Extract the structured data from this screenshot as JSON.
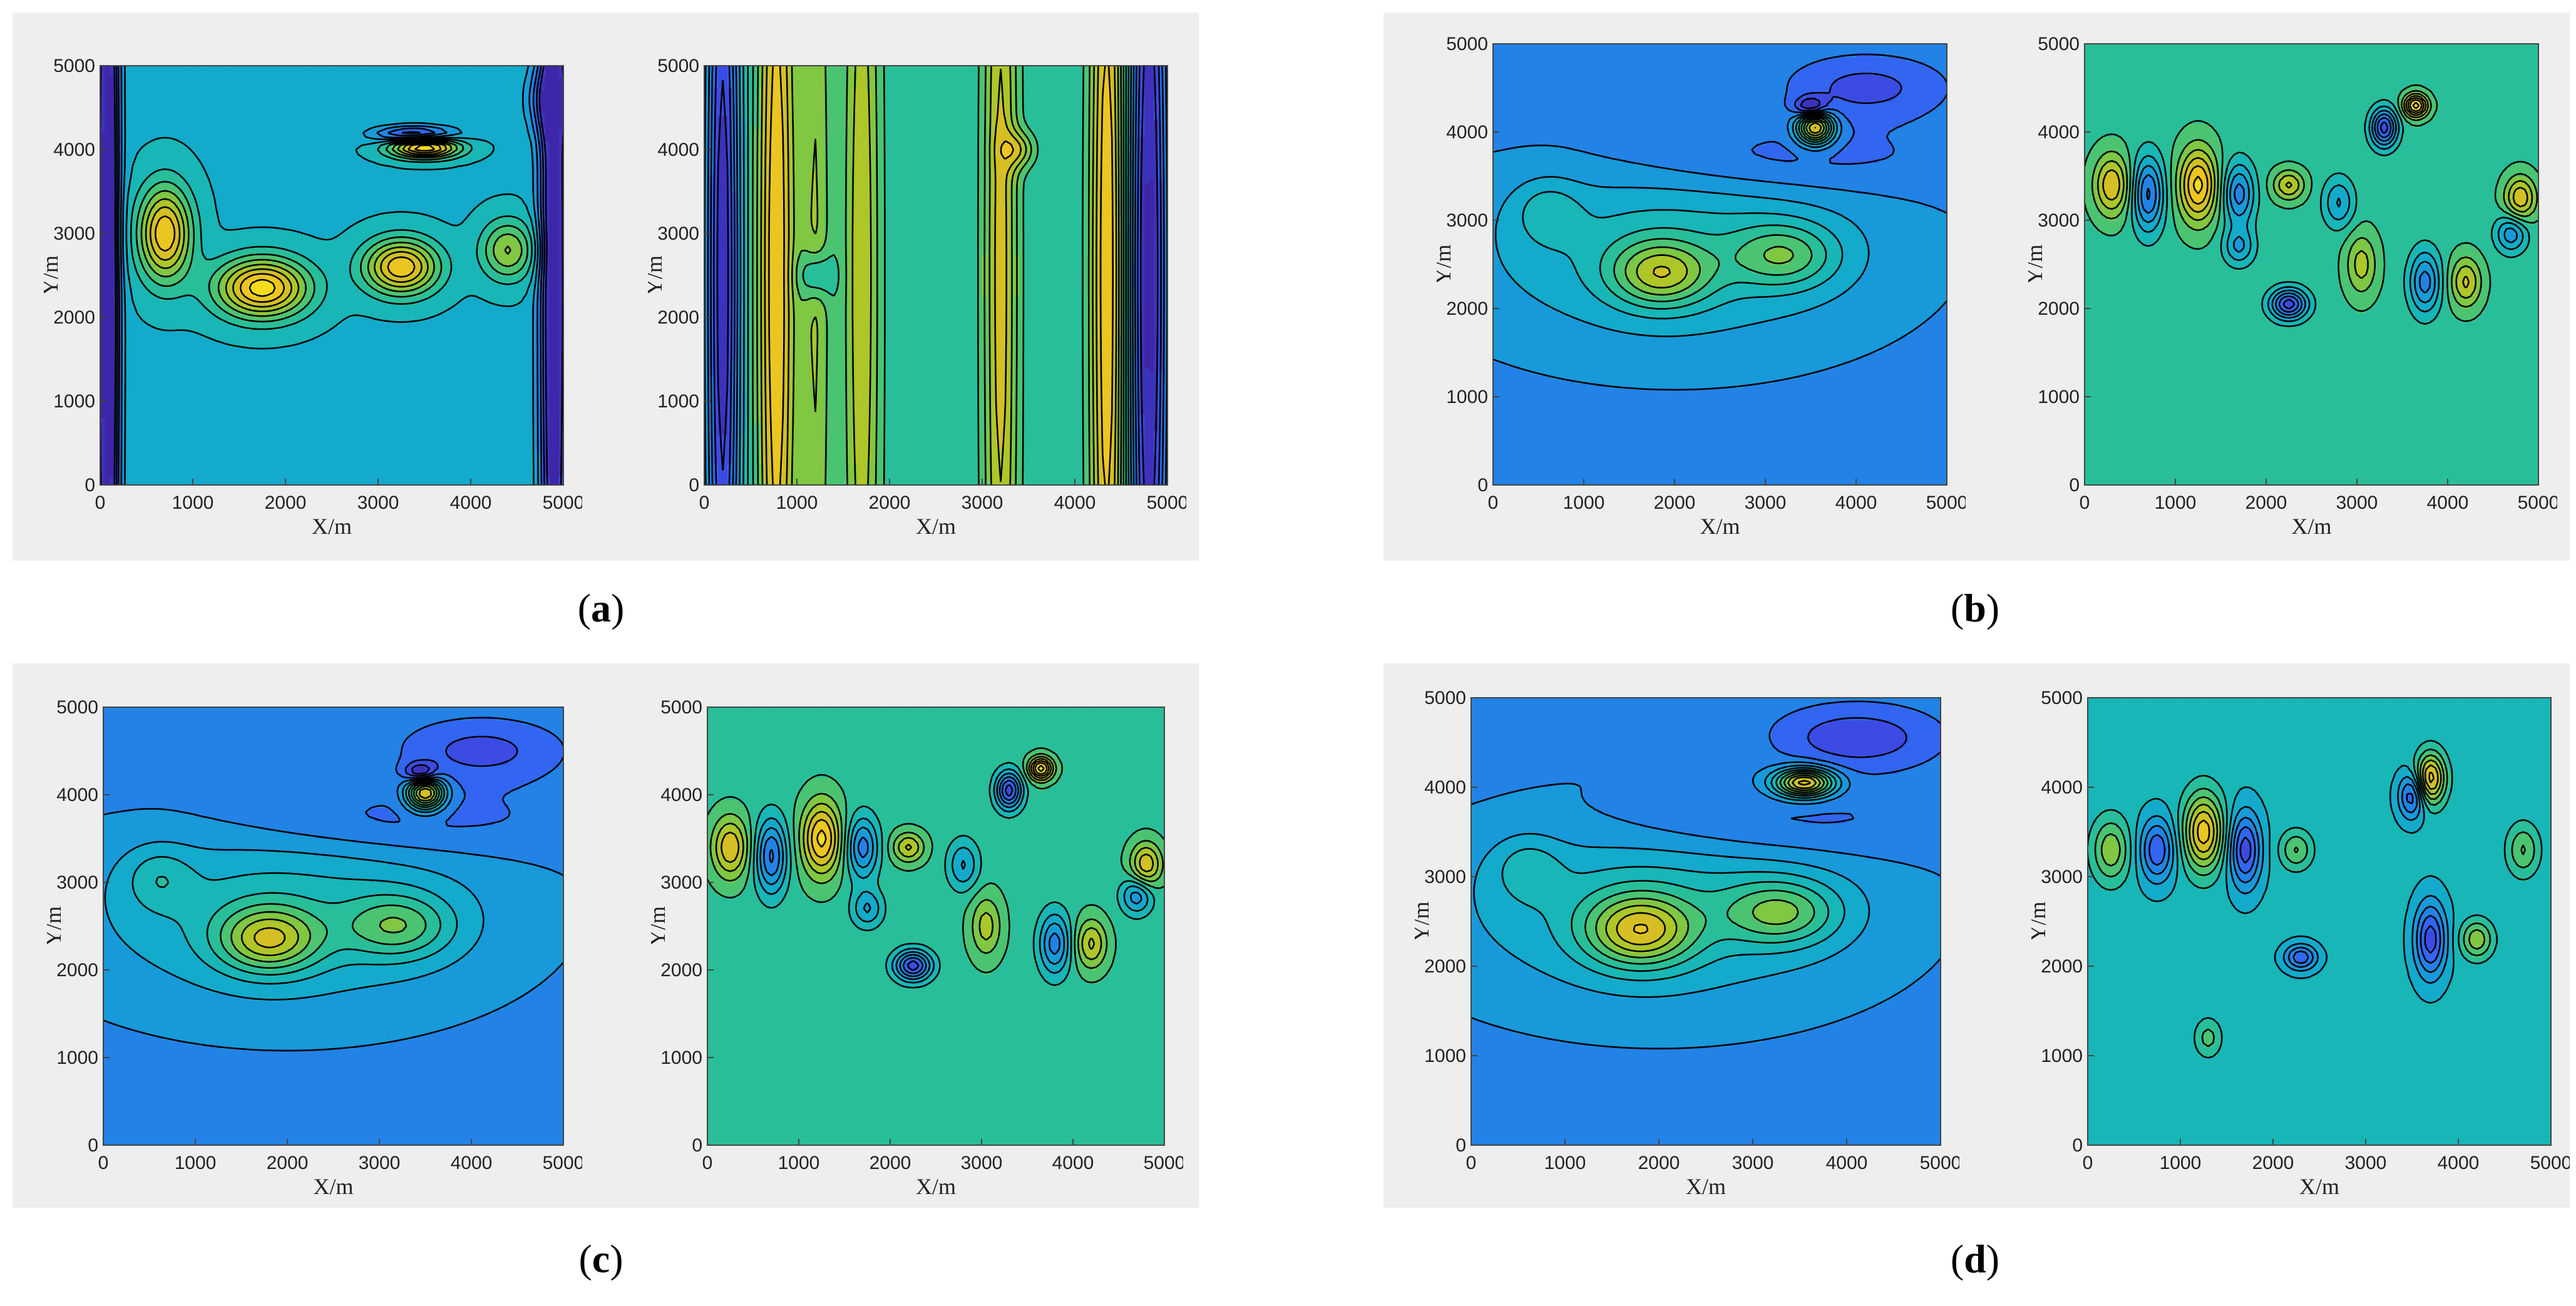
{
  "captions": [
    {
      "open": "(",
      "letter": "a",
      "close": ")"
    },
    {
      "open": "(",
      "letter": "b",
      "close": ")"
    },
    {
      "open": "(",
      "letter": "c",
      "close": ")"
    },
    {
      "open": "(",
      "letter": "d",
      "close": ")"
    }
  ],
  "colors": {
    "panel_bg": "#eeeeee",
    "contour_line": "#000000",
    "colormap": [
      "#3e26a8",
      "#3a57f6",
      "#1a90e0",
      "#10b2c4",
      "#30c28a",
      "#9bc92a",
      "#e8bb22",
      "#f8e51a"
    ]
  },
  "chart_data": [
    {
      "id": "a-left",
      "type": "heatmap",
      "xlabel": "X/m",
      "ylabel": "Y/m",
      "xlim": [
        0,
        5000
      ],
      "ylim": [
        0,
        5000
      ],
      "xticks": [
        0,
        1000,
        2000,
        3000,
        4000,
        5000
      ],
      "yticks": [
        0,
        1000,
        2000,
        3000,
        4000,
        5000
      ],
      "background_level": 0.42,
      "features": [
        {
          "x": 80,
          "y": 2500,
          "sx": 90,
          "sy": 5000,
          "a": -0.55
        },
        {
          "x": 4900,
          "y": 2500,
          "sx": 110,
          "sy": 5000,
          "a": -0.5
        },
        {
          "x": 4800,
          "y": 4600,
          "sx": 150,
          "sy": 300,
          "a": -0.2
        },
        {
          "x": 700,
          "y": 3000,
          "sx": 200,
          "sy": 400,
          "a": 0.5
        },
        {
          "x": 1750,
          "y": 2350,
          "sx": 350,
          "sy": 250,
          "a": 0.55
        },
        {
          "x": 3250,
          "y": 2600,
          "sx": 280,
          "sy": 230,
          "a": 0.5
        },
        {
          "x": 4400,
          "y": 2800,
          "sx": 200,
          "sy": 250,
          "a": 0.3
        },
        {
          "x": 3500,
          "y": 4030,
          "sx": 260,
          "sy": 90,
          "a": 0.6
        },
        {
          "x": 3400,
          "y": 4180,
          "sx": 300,
          "sy": 70,
          "a": -0.4
        }
      ]
    },
    {
      "id": "a-right",
      "type": "heatmap",
      "xlabel": "X/m",
      "ylabel": "Y/m",
      "xlim": [
        0,
        5000
      ],
      "ylim": [
        0,
        5000
      ],
      "xticks": [
        0,
        1000,
        2000,
        3000,
        4000,
        5000
      ],
      "yticks": [
        0,
        1000,
        2000,
        3000,
        4000,
        5000
      ],
      "background_level": 0.52,
      "features": [
        {
          "x": 200,
          "y": 2500,
          "sx": 130,
          "sy": 5000,
          "a": -0.5
        },
        {
          "x": 780,
          "y": 2500,
          "sx": 140,
          "sy": 5000,
          "a": 0.4
        },
        {
          "x": 1200,
          "y": 2500,
          "sx": 120,
          "sy": 5000,
          "a": 0.2
        },
        {
          "x": 1700,
          "y": 2500,
          "sx": 140,
          "sy": 5000,
          "a": 0.25
        },
        {
          "x": 3200,
          "y": 2500,
          "sx": 130,
          "sy": 5000,
          "a": 0.3
        },
        {
          "x": 4350,
          "y": 2500,
          "sx": 130,
          "sy": 5000,
          "a": 0.4
        },
        {
          "x": 4800,
          "y": 2500,
          "sx": 150,
          "sy": 5000,
          "a": -0.55
        },
        {
          "x": 1200,
          "y": 2500,
          "sx": 120,
          "sy": 200,
          "a": -0.2
        },
        {
          "x": 3400,
          "y": 4000,
          "sx": 120,
          "sy": 150,
          "a": 0.2
        }
      ]
    },
    {
      "id": "b-left",
      "type": "heatmap",
      "xlabel": "X/m",
      "ylabel": "Y/m",
      "xlim": [
        0,
        5000
      ],
      "ylim": [
        0,
        5000
      ],
      "xticks": [
        0,
        1000,
        2000,
        3000,
        4000,
        5000
      ],
      "yticks": [
        0,
        1000,
        2000,
        3000,
        4000,
        5000
      ],
      "background_level": 0.26,
      "features": [
        {
          "x": 2000,
          "y": 2700,
          "sx": 1600,
          "sy": 800,
          "a": 0.2
        },
        {
          "x": 1850,
          "y": 2400,
          "sx": 380,
          "sy": 260,
          "a": 0.35
        },
        {
          "x": 3200,
          "y": 2600,
          "sx": 400,
          "sy": 250,
          "a": 0.25
        },
        {
          "x": 600,
          "y": 3100,
          "sx": 250,
          "sy": 250,
          "a": 0.12
        },
        {
          "x": 3000,
          "y": 3700,
          "sx": 1400,
          "sy": 300,
          "a": -0.12
        },
        {
          "x": 4100,
          "y": 4500,
          "sx": 600,
          "sy": 250,
          "a": -0.15
        },
        {
          "x": 3550,
          "y": 4050,
          "sx": 140,
          "sy": 130,
          "a": 0.65
        },
        {
          "x": 3500,
          "y": 4280,
          "sx": 120,
          "sy": 80,
          "a": -0.3
        }
      ]
    },
    {
      "id": "b-right",
      "type": "heatmap",
      "xlabel": "X/m",
      "ylabel": "Y/m",
      "xlim": [
        0,
        5000
      ],
      "ylim": [
        0,
        5000
      ],
      "xticks": [
        0,
        1000,
        2000,
        3000,
        4000,
        5000
      ],
      "yticks": [
        0,
        1000,
        2000,
        3000,
        4000,
        5000
      ],
      "background_level": 0.55,
      "features": [
        {
          "x": 300,
          "y": 3400,
          "sx": 140,
          "sy": 250,
          "a": 0.3
        },
        {
          "x": 700,
          "y": 3300,
          "sx": 120,
          "sy": 300,
          "a": -0.35
        },
        {
          "x": 1250,
          "y": 3400,
          "sx": 150,
          "sy": 300,
          "a": 0.4
        },
        {
          "x": 1700,
          "y": 3300,
          "sx": 120,
          "sy": 250,
          "a": -0.3
        },
        {
          "x": 1700,
          "y": 2700,
          "sx": 120,
          "sy": 150,
          "a": -0.2
        },
        {
          "x": 2250,
          "y": 3400,
          "sx": 120,
          "sy": 120,
          "a": 0.25
        },
        {
          "x": 2250,
          "y": 2050,
          "sx": 140,
          "sy": 120,
          "a": -0.45
        },
        {
          "x": 3300,
          "y": 4050,
          "sx": 100,
          "sy": 150,
          "a": -0.45
        },
        {
          "x": 3650,
          "y": 4300,
          "sx": 90,
          "sy": 90,
          "a": 0.5
        },
        {
          "x": 3750,
          "y": 2300,
          "sx": 120,
          "sy": 250,
          "a": -0.3
        },
        {
          "x": 4200,
          "y": 2300,
          "sx": 120,
          "sy": 200,
          "a": 0.25
        },
        {
          "x": 4800,
          "y": 3250,
          "sx": 120,
          "sy": 180,
          "a": 0.3
        },
        {
          "x": 4700,
          "y": 2850,
          "sx": 120,
          "sy": 150,
          "a": -0.25
        },
        {
          "x": 2800,
          "y": 3200,
          "sx": 120,
          "sy": 200,
          "a": -0.2
        },
        {
          "x": 3050,
          "y": 2500,
          "sx": 120,
          "sy": 250,
          "a": 0.2
        }
      ]
    },
    {
      "id": "c-left",
      "type": "heatmap",
      "xlabel": "X/m",
      "ylabel": "Y/m",
      "xlim": [
        0,
        5000
      ],
      "ylim": [
        0,
        5000
      ],
      "xticks": [
        0,
        1000,
        2000,
        3000,
        4000,
        5000
      ],
      "yticks": [
        0,
        1000,
        2000,
        3000,
        4000,
        5000
      ],
      "background_level": 0.26,
      "features": [
        {
          "x": 2000,
          "y": 2700,
          "sx": 1600,
          "sy": 800,
          "a": 0.2
        },
        {
          "x": 1800,
          "y": 2350,
          "sx": 380,
          "sy": 260,
          "a": 0.38
        },
        {
          "x": 3200,
          "y": 2500,
          "sx": 400,
          "sy": 250,
          "a": 0.25
        },
        {
          "x": 600,
          "y": 3050,
          "sx": 250,
          "sy": 250,
          "a": 0.12
        },
        {
          "x": 3000,
          "y": 3700,
          "sx": 1400,
          "sy": 300,
          "a": -0.12
        },
        {
          "x": 4100,
          "y": 4500,
          "sx": 600,
          "sy": 250,
          "a": -0.15
        },
        {
          "x": 3500,
          "y": 4020,
          "sx": 140,
          "sy": 130,
          "a": 0.65
        },
        {
          "x": 3450,
          "y": 4250,
          "sx": 120,
          "sy": 80,
          "a": -0.3
        }
      ]
    },
    {
      "id": "c-right",
      "type": "heatmap",
      "xlabel": "X/m",
      "ylabel": "Y/m",
      "xlim": [
        0,
        5000
      ],
      "ylim": [
        0,
        5000
      ],
      "xticks": [
        0,
        1000,
        2000,
        3000,
        4000,
        5000
      ],
      "yticks": [
        0,
        1000,
        2000,
        3000,
        4000,
        5000
      ],
      "background_level": 0.55,
      "features": [
        {
          "x": 250,
          "y": 3400,
          "sx": 140,
          "sy": 250,
          "a": 0.3
        },
        {
          "x": 700,
          "y": 3300,
          "sx": 120,
          "sy": 300,
          "a": -0.35
        },
        {
          "x": 1250,
          "y": 3500,
          "sx": 150,
          "sy": 300,
          "a": 0.4
        },
        {
          "x": 1700,
          "y": 3400,
          "sx": 120,
          "sy": 250,
          "a": -0.3
        },
        {
          "x": 1750,
          "y": 2700,
          "sx": 120,
          "sy": 150,
          "a": -0.2
        },
        {
          "x": 2200,
          "y": 3400,
          "sx": 120,
          "sy": 120,
          "a": 0.25
        },
        {
          "x": 2250,
          "y": 2050,
          "sx": 140,
          "sy": 120,
          "a": -0.45
        },
        {
          "x": 3300,
          "y": 4050,
          "sx": 100,
          "sy": 150,
          "a": -0.45
        },
        {
          "x": 3650,
          "y": 4300,
          "sx": 90,
          "sy": 90,
          "a": 0.5
        },
        {
          "x": 3800,
          "y": 2300,
          "sx": 120,
          "sy": 250,
          "a": -0.3
        },
        {
          "x": 4200,
          "y": 2300,
          "sx": 120,
          "sy": 200,
          "a": 0.25
        },
        {
          "x": 4800,
          "y": 3200,
          "sx": 120,
          "sy": 180,
          "a": 0.3
        },
        {
          "x": 4700,
          "y": 2850,
          "sx": 120,
          "sy": 150,
          "a": -0.25
        },
        {
          "x": 2800,
          "y": 3200,
          "sx": 120,
          "sy": 200,
          "a": -0.2
        },
        {
          "x": 3050,
          "y": 2500,
          "sx": 120,
          "sy": 250,
          "a": 0.2
        }
      ]
    },
    {
      "id": "d-left",
      "type": "heatmap",
      "xlabel": "X/m",
      "ylabel": "Y/m",
      "xlim": [
        0,
        5000
      ],
      "ylim": [
        0,
        5000
      ],
      "xticks": [
        0,
        1000,
        2000,
        3000,
        4000,
        5000
      ],
      "yticks": [
        0,
        1000,
        2000,
        3000,
        4000,
        5000
      ],
      "background_level": 0.26,
      "features": [
        {
          "x": 2000,
          "y": 2700,
          "sx": 1600,
          "sy": 800,
          "a": 0.2
        },
        {
          "x": 1800,
          "y": 2400,
          "sx": 400,
          "sy": 280,
          "a": 0.42
        },
        {
          "x": 3300,
          "y": 2600,
          "sx": 420,
          "sy": 250,
          "a": 0.28
        },
        {
          "x": 600,
          "y": 3100,
          "sx": 250,
          "sy": 250,
          "a": 0.12
        },
        {
          "x": 3000,
          "y": 3600,
          "sx": 1400,
          "sy": 300,
          "a": -0.12
        },
        {
          "x": 4100,
          "y": 4550,
          "sx": 600,
          "sy": 250,
          "a": -0.18
        },
        {
          "x": 3550,
          "y": 4050,
          "sx": 220,
          "sy": 110,
          "a": 0.65
        }
      ]
    },
    {
      "id": "d-right",
      "type": "heatmap",
      "xlabel": "X/m",
      "ylabel": "Y/m",
      "xlim": [
        0,
        5000
      ],
      "ylim": [
        0,
        5000
      ],
      "xticks": [
        0,
        1000,
        2000,
        3000,
        4000,
        5000
      ],
      "yticks": [
        0,
        1000,
        2000,
        3000,
        4000,
        5000
      ],
      "background_level": 0.45,
      "features": [
        {
          "x": 250,
          "y": 3300,
          "sx": 140,
          "sy": 250,
          "a": 0.25
        },
        {
          "x": 750,
          "y": 3300,
          "sx": 130,
          "sy": 250,
          "a": -0.3
        },
        {
          "x": 1250,
          "y": 3500,
          "sx": 150,
          "sy": 300,
          "a": 0.45
        },
        {
          "x": 1700,
          "y": 3300,
          "sx": 120,
          "sy": 300,
          "a": -0.35
        },
        {
          "x": 2250,
          "y": 3300,
          "sx": 120,
          "sy": 150,
          "a": 0.2
        },
        {
          "x": 2300,
          "y": 2100,
          "sx": 120,
          "sy": 100,
          "a": -0.3
        },
        {
          "x": 3500,
          "y": 3900,
          "sx": 100,
          "sy": 180,
          "a": -0.3
        },
        {
          "x": 3700,
          "y": 4100,
          "sx": 110,
          "sy": 200,
          "a": 0.45
        },
        {
          "x": 3700,
          "y": 2300,
          "sx": 120,
          "sy": 300,
          "a": -0.35
        },
        {
          "x": 4200,
          "y": 2300,
          "sx": 120,
          "sy": 150,
          "a": 0.25
        },
        {
          "x": 4700,
          "y": 3300,
          "sx": 120,
          "sy": 200,
          "a": 0.2
        },
        {
          "x": 1300,
          "y": 1200,
          "sx": 100,
          "sy": 150,
          "a": 0.15
        }
      ]
    }
  ]
}
